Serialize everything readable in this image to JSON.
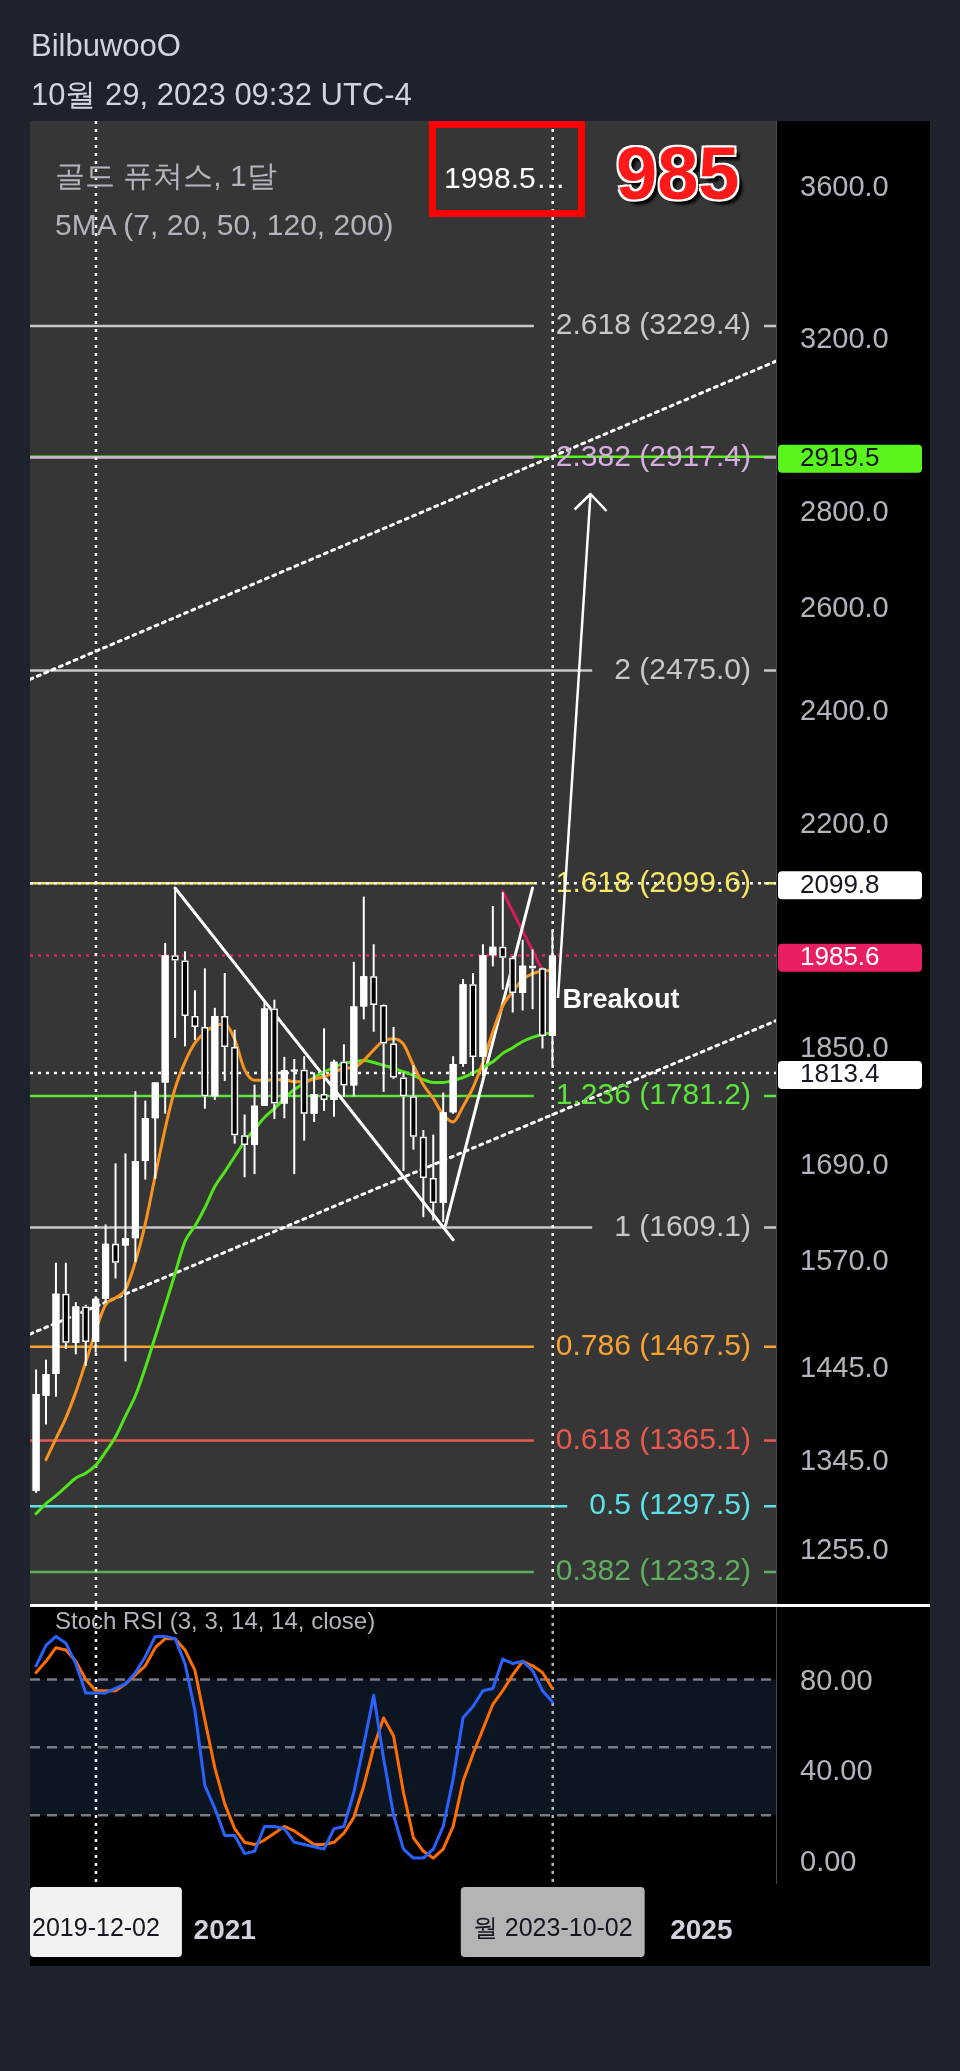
{
  "chart_data": [
    {
      "type": "candlestick",
      "title": "골드 퓨쳐스, 1달",
      "subtitle": "5MA (7, 20, 50, 120, 200)",
      "color": "#ffffff",
      "colors": [
        "#ffffff",
        "#ffffff",
        "#ffffff",
        "#000000",
        "#ffffff",
        "#000000",
        "#ffffff",
        "#ffffff",
        "#000000",
        "#ffffff",
        "#ffffff",
        "#ffffff",
        "#ffffff",
        "#ffffff",
        "#000000",
        "#000000",
        "#000000",
        "#000000",
        "#ffffff",
        "#000000",
        "#000000",
        "#000000",
        "#ffffff",
        "#ffffff",
        "#000000",
        "#ffffff",
        "#ffffff",
        "#000000",
        "#ffffff",
        "#000000",
        "#ffffff",
        "#000000",
        "#ffffff",
        "#ffffff",
        "#000000",
        "#000000",
        "#000000",
        "#000000",
        "#000000",
        "#000000",
        "#000000",
        "#ffffff",
        "#ffffff",
        "#ffffff",
        "#000000",
        "#ffffff",
        "#ffffff",
        "#000000",
        "#000000",
        "#ffffff",
        "#000000",
        "#000000",
        "#ffffff"
      ],
      "x": [
        "2019-06",
        "2019-07",
        "2019-08",
        "2019-09",
        "2019-10",
        "2019-11",
        "2019-12",
        "2020-01",
        "2020-02",
        "2020-03",
        "2020-04",
        "2020-05",
        "2020-06",
        "2020-07",
        "2020-08",
        "2020-09",
        "2020-10",
        "2020-11",
        "2020-12",
        "2021-01",
        "2021-02",
        "2021-03",
        "2021-04",
        "2021-05",
        "2021-06",
        "2021-07",
        "2021-08",
        "2021-09",
        "2021-10",
        "2021-11",
        "2021-12",
        "2022-01",
        "2022-02",
        "2022-03",
        "2022-04",
        "2022-05",
        "2022-06",
        "2022-07",
        "2022-08",
        "2022-09",
        "2022-10",
        "2022-11",
        "2022-12",
        "2023-01",
        "2023-02",
        "2023-03",
        "2023-04",
        "2023-05",
        "2023-06",
        "2023-07",
        "2023-08",
        "2023-09",
        "2023-10"
      ],
      "ohlc": [
        [
          1313,
          1442,
          1311,
          1415
        ],
        [
          1413,
          1453,
          1382,
          1437
        ],
        [
          1437,
          1566,
          1412,
          1529
        ],
        [
          1529,
          1566,
          1465,
          1472
        ],
        [
          1472,
          1519,
          1459,
          1514
        ],
        [
          1514,
          1516,
          1446,
          1473
        ],
        [
          1473,
          1526,
          1461,
          1523
        ],
        [
          1523,
          1613,
          1518,
          1589
        ],
        [
          1589,
          1691,
          1547,
          1566
        ],
        [
          1587,
          1704,
          1451,
          1596
        ],
        [
          1596,
          1788,
          1567,
          1694
        ],
        [
          1694,
          1775,
          1670,
          1751
        ],
        [
          1751,
          1800,
          1671,
          1800
        ],
        [
          1800,
          2005,
          1757,
          1986
        ],
        [
          1986,
          2089,
          1863,
          1978
        ],
        [
          1978,
          1992,
          1851,
          1895
        ],
        [
          1895,
          1933,
          1860,
          1879
        ],
        [
          1879,
          1966,
          1764,
          1781
        ],
        [
          1781,
          1907,
          1776,
          1895
        ],
        [
          1895,
          1959,
          1802,
          1850
        ],
        [
          1850,
          1875,
          1717,
          1728
        ],
        [
          1728,
          1756,
          1673,
          1715
        ],
        [
          1715,
          1797,
          1677,
          1768
        ],
        [
          1768,
          1916,
          1768,
          1906
        ],
        [
          1906,
          1919,
          1750,
          1771
        ],
        [
          1771,
          1836,
          1751,
          1817
        ],
        [
          1817,
          1833,
          1677,
          1818
        ],
        [
          1818,
          1837,
          1721,
          1757
        ],
        [
          1757,
          1814,
          1746,
          1784
        ],
        [
          1784,
          1877,
          1761,
          1776
        ],
        [
          1776,
          1832,
          1753,
          1829
        ],
        [
          1829,
          1854,
          1780,
          1796
        ],
        [
          1796,
          1976,
          1781,
          1909
        ],
        [
          1909,
          2078,
          1890,
          1954
        ],
        [
          1954,
          2003,
          1872,
          1911
        ],
        [
          1911,
          1912,
          1787,
          1855
        ],
        [
          1855,
          1879,
          1805,
          1807
        ],
        [
          1807,
          1814,
          1681,
          1781
        ],
        [
          1781,
          1824,
          1709,
          1726
        ],
        [
          1726,
          1735,
          1622,
          1672
        ],
        [
          1672,
          1729,
          1618,
          1640
        ],
        [
          1640,
          1786,
          1616,
          1759
        ],
        [
          1759,
          1837,
          1757,
          1826
        ],
        [
          1826,
          1950,
          1822,
          1942
        ],
        [
          1942,
          1959,
          1809,
          1836
        ],
        [
          1836,
          2003,
          1809,
          1986
        ],
        [
          1986,
          2063,
          1969,
          1999
        ],
        [
          1999,
          2085,
          1934,
          1982
        ],
        [
          1982,
          1985,
          1900,
          1929
        ],
        [
          1929,
          2010,
          1903,
          1970
        ],
        [
          1970,
          1995,
          1905,
          1966
        ],
        [
          1966,
          1967,
          1848,
          1866
        ],
        [
          1866,
          2024,
          1824,
          1985.6
        ]
      ],
      "series": [
        {
          "type": "line",
          "color": "#f7931e",
          "values": [
            null,
            1345,
            1367,
            1389,
            1417,
            1450,
            null,
            1516,
            1524,
            1534,
            1567,
            1614,
            1675,
            1737,
            1792,
            1829,
            1856,
            1871,
            1881,
            1883,
            1861,
            1818,
            1803,
            1803,
            1804,
            1804,
            1801,
            1801,
            1805,
            1808,
            1814,
            1820,
            1821,
            1831,
            1846,
            1859,
            1862,
            1854,
            1824,
            1797,
            1778,
            1756,
            1746,
            1767,
            1793,
            1828,
            1872,
            1910,
            1931,
            1949,
            1958,
            1962,
            1963
          ]
        },
        {
          "type": "line",
          "color": "#52e51d",
          "values": [
            1290,
            1300,
            1308,
            1317,
            1326,
            1331,
            1339,
            1353,
            1369,
            1391,
            1413,
            1444,
            1479,
            1515,
            1553,
            1592,
            1611,
            1634,
            1661,
            1680,
            1700,
            1720,
            1736,
            1752,
            1764,
            1778,
            1790,
            null,
            1807,
            1815,
            1821,
            1827,
            1829,
            1831,
            1828,
            1824,
            1820,
            1815,
            1810,
            1804,
            1800,
            1800,
            1803,
            1807,
            1813,
            1821,
            1829,
            1841,
            1849,
            1858,
            1864,
            1868,
            1871
          ]
        },
        {
          "type": "line",
          "color": "#ffffff",
          "x": [
            "2020-08",
            "2022-12"
          ],
          "values": [
            2092,
            1594
          ]
        },
        {
          "type": "line",
          "color": "#ffffff",
          "x": [
            "2022-11-08",
            "2023-08"
          ],
          "values": [
            1612,
            2092
          ]
        },
        {
          "type": "line",
          "color": "#d81b60",
          "x": [
            "2023-05",
            "2023-09-12"
          ],
          "values": [
            2086,
            1952
          ]
        },
        {
          "type": "line",
          "color": "#ffffff",
          "line_style": "dotted",
          "x": [
            "2019-05-13",
            "2025-08-17"
          ],
          "values": [
            2458,
            3143
          ]
        },
        {
          "type": "line",
          "color": "#ffffff",
          "line_style": "dotted",
          "x": [
            "2019-05-13",
            "2025-08-17"
          ],
          "values": [
            1482,
            1888
          ]
        }
      ],
      "xlim": [
        "2019-05-13",
        "2025-08-17"
      ],
      "ylim": [
        1203,
        3784
      ],
      "log": true,
      "yticks": [
        {
          "value": 3600,
          "label": "3600.0"
        },
        {
          "value": 3200,
          "label": "3200.0"
        },
        2919.5,
        {
          "value": 2800,
          "label": "2800.0"
        },
        {
          "value": 2600,
          "label": "2600.0"
        },
        {
          "value": 2400,
          "label": "2400.0"
        },
        {
          "value": 2200,
          "label": "2200.0"
        },
        2099.8,
        1985.6,
        {
          "value": 1850,
          "label": "1850.0"
        },
        1813.4,
        {
          "value": 1690,
          "label": "1690.0"
        },
        {
          "value": 1570,
          "label": "1570.0"
        },
        {
          "value": 1445,
          "label": "1445.0"
        },
        {
          "value": 1345,
          "label": "1345.0"
        },
        {
          "value": 1255,
          "label": "1255.0"
        }
      ],
      "tick_labels": "y",
      "ref_lines": [
        {
          "axis": "y",
          "value": 3229.4,
          "label": "2.618 (3229.4)",
          "color": "#c8c8c8"
        },
        {
          "axis": "y",
          "value": 2917.4,
          "label": "2.382 (2917.4)",
          "color": "#d7aee0"
        },
        {
          "axis": "y",
          "value": 2475.0,
          "label": "2 (2475.0)",
          "color": "#c8c8c8"
        },
        {
          "axis": "y",
          "value": 2099.6,
          "label": "1.618 (2099.6)",
          "color": "#f5e663"
        },
        {
          "axis": "y",
          "value": 1781.2,
          "label": "1.236 (1781.2)",
          "color": "#5de33b"
        },
        {
          "axis": "y",
          "value": 1609.1,
          "label": "1 (1609.1)",
          "color": "#c8c8c8"
        },
        {
          "axis": "y",
          "value": 1467.5,
          "label": "0.786 (1467.5)",
          "color": "#f7a233"
        },
        {
          "axis": "y",
          "value": 1365.1,
          "label": "0.618 (1365.1)",
          "color": "#e85a4f"
        },
        {
          "axis": "y",
          "value": 1297.5,
          "label": "0.5 (1297.5)",
          "color": "#5ce1e6"
        },
        {
          "axis": "y",
          "value": 1233.2,
          "label": "0.382 (1233.2)",
          "color": "#5fae5f"
        },
        {
          "axis": "y",
          "value": 2919.5,
          "color": "#5af51c"
        },
        {
          "axis": "y",
          "value": 2099.8,
          "color": "#ffffff",
          "line_style": "dotted"
        },
        {
          "axis": "y",
          "value": 1985.6,
          "color": "#e91e63",
          "line_style": "dotted"
        },
        {
          "axis": "y",
          "value": 1813.4,
          "color": "#ffffff",
          "line_style": "dotted"
        },
        {
          "axis": "x",
          "value": "2019-12-02",
          "color": "#ffffff",
          "line_style": "dotted"
        },
        {
          "axis": "x",
          "value": "2023-10-02",
          "color": "#ffffff",
          "line_style": "dotted"
        }
      ],
      "annotations": [
        "BilbuwooO",
        "10월 29, 2023 09:32 UTC-4",
        "1998.5…",
        "985",
        {
          "text": "Breakout",
          "x": "2023-10",
          "y": 1917
        }
      ]
    },
    {
      "type": "line",
      "title": "Stoch RSI (3, 3, 14, 14, close)",
      "x": [
        "2019-06",
        "2019-07",
        "2019-08",
        "2019-09",
        "2019-10",
        "2019-11",
        "2019-12",
        "2020-01",
        "2020-02",
        "2020-03",
        "2020-04",
        "2020-05",
        "2020-06",
        "2020-07",
        "2020-08",
        "2020-09",
        "2020-10",
        "2020-11",
        "2020-12",
        "2021-01",
        "2021-02",
        "2021-03",
        "2021-04",
        "2021-05",
        "2021-06",
        "2021-07",
        "2021-08",
        "2021-09",
        "2021-10",
        "2021-11",
        "2021-12",
        "2022-01",
        "2022-02",
        "2022-03",
        "2022-04",
        "2022-05",
        "2022-06",
        "2022-07",
        "2022-08",
        "2022-09",
        "2022-10",
        "2022-11",
        "2022-12",
        "2023-01",
        "2023-02",
        "2023-03",
        "2023-04",
        "2023-05",
        "2023-06",
        "2023-07",
        "2023-08",
        "2023-09",
        "2023-10"
      ],
      "series": [
        {
          "color": "#2962ff",
          "values": [
            86,
            95,
            99,
            96,
            87,
            74,
            74,
            74,
            76,
            78,
            83,
            90,
            99,
            99,
            98,
            87,
            66,
            33,
            23,
            11,
            11,
            3,
            4,
            15,
            15,
            14,
            8,
            7,
            6,
            5,
            14,
            15,
            30,
            51,
            73,
            45,
            20,
            5,
            1,
            1,
            5,
            15,
            36,
            63,
            68,
            75,
            76,
            89,
            87,
            88,
            84,
            75,
            70
          ]
        },
        {
          "color": "#ff6d00",
          "values": [
            83,
            88,
            94,
            93,
            88,
            80,
            75,
            75,
            75,
            78,
            82,
            86,
            94,
            98,
            98,
            93,
            84,
            62,
            41,
            25,
            14,
            8,
            7,
            9,
            12,
            15,
            13,
            10,
            7,
            7,
            8,
            12,
            19,
            33,
            50,
            63,
            55,
            30,
            10,
            4,
            1,
            5,
            15,
            35,
            47,
            58,
            69,
            75,
            82,
            88,
            86,
            83,
            76
          ]
        }
      ],
      "xlim": [
        "2019-05-13",
        "2025-08-17"
      ],
      "xticks": [
        "2019-12-02",
        "2021",
        {
          "value": "2023-10-02",
          "label": "월 2023-10-02"
        },
        "2025"
      ],
      "ylim": [
        -10,
        112
      ],
      "yticks": [
        {
          "value": 80,
          "label": "80.00"
        },
        {
          "value": 40,
          "label": "40.00"
        },
        {
          "value": 0,
          "label": "0.00"
        }
      ],
      "bands": [
        {
          "axis": "y",
          "from": 20,
          "to": 80,
          "color": "#0b1622"
        }
      ],
      "ref_lines": [
        {
          "axis": "y",
          "value": 80,
          "color": "#787b86",
          "line_style": "dashed"
        },
        {
          "axis": "y",
          "value": 50,
          "color": "#787b86",
          "line_style": "dashed"
        },
        {
          "axis": "y",
          "value": 20,
          "color": "#787b86",
          "line_style": "dashed"
        },
        {
          "axis": "x",
          "value": "2019-12-02",
          "color": "#f2f2f2",
          "line_style": "dotted"
        },
        {
          "axis": "x",
          "value": "2023-10-02",
          "color": "#b4b4b4",
          "line_style": "dotted"
        }
      ]
    }
  ]
}
